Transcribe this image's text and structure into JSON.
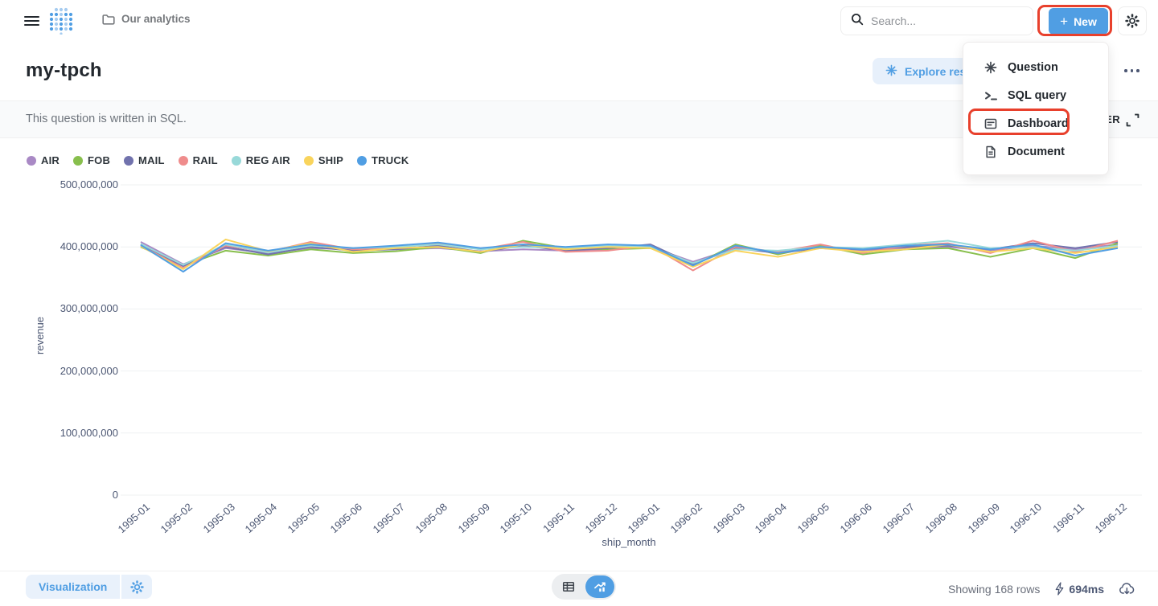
{
  "colors": {
    "brand": "#509EE3",
    "annotation": "#E8402C"
  },
  "topbar": {
    "breadcrumb": "Our analytics",
    "search_placeholder": "Search...",
    "new_label": "New",
    "new_plus": "+"
  },
  "header": {
    "title": "my-tpch",
    "explore_label": "Explore results"
  },
  "subheader": {
    "message": "This question is written in SQL.",
    "filter_label": "FILTER"
  },
  "menu": {
    "items": [
      {
        "label": "Question",
        "icon": "sparkle-icon"
      },
      {
        "label": "SQL query",
        "icon": "terminal-icon"
      },
      {
        "label": "Dashboard",
        "icon": "dashboard-icon",
        "highlighted": true
      },
      {
        "label": "Document",
        "icon": "document-icon"
      }
    ]
  },
  "footer": {
    "visualization_label": "Visualization",
    "rows_status": "Showing 168 rows",
    "query_duration": "694ms"
  },
  "chart_data": {
    "type": "line",
    "title": "",
    "xlabel": "ship_month",
    "ylabel": "revenue",
    "ylim": [
      0,
      500000000
    ],
    "grid": true,
    "legend_position": "top-left",
    "yticks": [
      0,
      100000000,
      200000000,
      300000000,
      400000000,
      500000000
    ],
    "ytick_labels": [
      "0",
      "100,000,000",
      "200,000,000",
      "300,000,000",
      "400,000,000",
      "500,000,000"
    ],
    "x": [
      "1995-01",
      "1995-02",
      "1995-03",
      "1995-04",
      "1995-05",
      "1995-06",
      "1995-07",
      "1995-08",
      "1995-09",
      "1995-10",
      "1995-11",
      "1995-12",
      "1996-01",
      "1996-02",
      "1996-03",
      "1996-04",
      "1996-05",
      "1996-06",
      "1996-07",
      "1996-08",
      "1996-09",
      "1996-10",
      "1996-11",
      "1996-12"
    ],
    "series": [
      {
        "name": "AIR",
        "color": "#A989C5",
        "values": [
          408000000,
          372000000,
          398000000,
          390000000,
          398000000,
          396000000,
          396000000,
          398000000,
          393000000,
          396000000,
          394000000,
          396000000,
          400000000,
          376000000,
          398000000,
          392000000,
          398000000,
          394000000,
          398000000,
          400000000,
          394000000,
          402000000,
          396000000,
          404000000
        ]
      },
      {
        "name": "FOB",
        "color": "#88BF4D",
        "values": [
          400000000,
          370000000,
          394000000,
          386000000,
          396000000,
          390000000,
          393000000,
          400000000,
          390000000,
          410000000,
          398000000,
          396000000,
          398000000,
          370000000,
          404000000,
          388000000,
          402000000,
          388000000,
          396000000,
          398000000,
          384000000,
          398000000,
          382000000,
          406000000
        ]
      },
      {
        "name": "MAIL",
        "color": "#7172AD",
        "values": [
          404000000,
          369000000,
          400000000,
          388000000,
          400000000,
          394000000,
          396000000,
          402000000,
          392000000,
          402000000,
          394000000,
          398000000,
          404000000,
          372000000,
          398000000,
          390000000,
          398000000,
          396000000,
          400000000,
          402000000,
          396000000,
          406000000,
          398000000,
          408000000
        ]
      },
      {
        "name": "RAIL",
        "color": "#EF8C8C",
        "values": [
          402000000,
          366000000,
          402000000,
          392000000,
          408000000,
          396000000,
          398000000,
          406000000,
          396000000,
          408000000,
          392000000,
          394000000,
          402000000,
          362000000,
          400000000,
          392000000,
          404000000,
          390000000,
          402000000,
          406000000,
          390000000,
          410000000,
          392000000,
          410000000
        ]
      },
      {
        "name": "REG AIR",
        "color": "#98D9D9",
        "values": [
          405000000,
          371000000,
          404000000,
          391000000,
          402000000,
          398000000,
          400000000,
          404000000,
          396000000,
          400000000,
          398000000,
          402000000,
          400000000,
          374000000,
          396000000,
          394000000,
          400000000,
          398000000,
          404000000,
          410000000,
          398000000,
          400000000,
          394000000,
          402000000
        ]
      },
      {
        "name": "SHIP",
        "color": "#F9D45C",
        "values": [
          401000000,
          364000000,
          412000000,
          393000000,
          406000000,
          392000000,
          398000000,
          400000000,
          392000000,
          404000000,
          396000000,
          400000000,
          398000000,
          368000000,
          394000000,
          384000000,
          398000000,
          392000000,
          396000000,
          404000000,
          392000000,
          398000000,
          390000000,
          400000000
        ]
      },
      {
        "name": "TRUCK",
        "color": "#509EE3",
        "values": [
          403000000,
          360000000,
          406000000,
          394000000,
          404000000,
          398000000,
          402000000,
          407000000,
          398000000,
          404000000,
          400000000,
          404000000,
          402000000,
          370000000,
          402000000,
          390000000,
          400000000,
          396000000,
          402000000,
          404000000,
          396000000,
          404000000,
          386000000,
          398000000
        ]
      }
    ]
  }
}
